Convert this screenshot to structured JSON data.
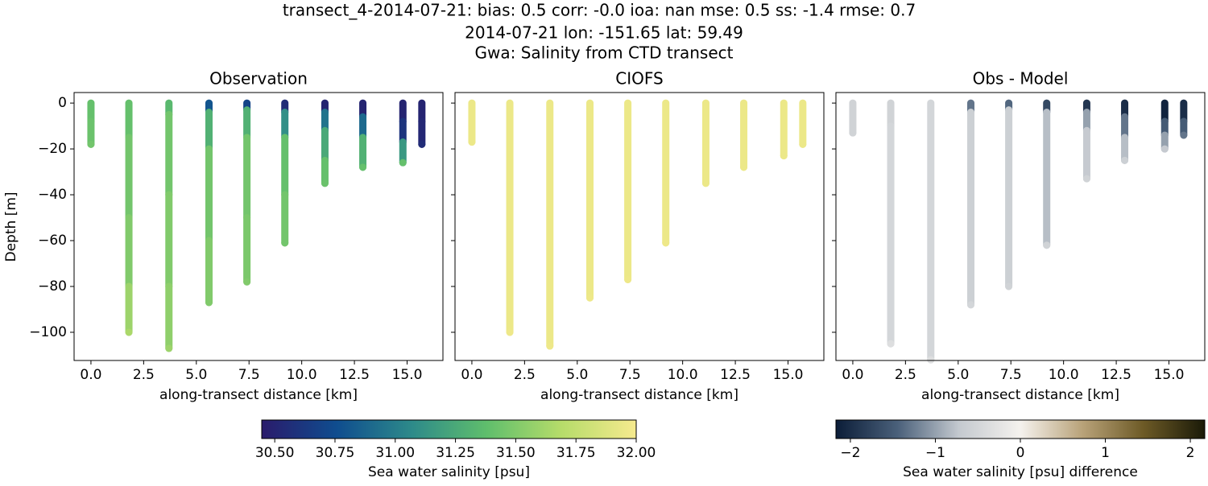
{
  "chart_data": {
    "type": "transect",
    "title": [
      "transect_4-2014-07-21: bias: 0.5  corr: -0.0  ioa: nan  mse: 0.5  ss: -1.4  rmse: 0.7",
      "2014-07-21 lon: -151.65 lat: 59.49",
      "Gwa: Salinity from CTD transect"
    ],
    "xlabel": "along-transect distance [km]",
    "ylabel": "Depth [m]",
    "xlim": [
      -0.8,
      16.7
    ],
    "ylim": [
      -112.3,
      4.6
    ],
    "xticks": [
      {
        "value": 0.0,
        "label": "0.0"
      },
      2.5,
      {
        "value": 5.0,
        "label": "5.0"
      },
      7.5,
      {
        "value": 10.0,
        "label": "10.0"
      },
      12.5,
      {
        "value": 15.0,
        "label": "15.0"
      }
    ],
    "yticks": [
      {
        "value": -100,
        "label": "−100"
      },
      {
        "value": -80,
        "label": "−80"
      },
      {
        "value": -60,
        "label": "−60"
      },
      {
        "value": -40,
        "label": "−40"
      },
      {
        "value": -20,
        "label": "−20"
      },
      0
    ],
    "colormaps": {
      "haline": [
        "#2a1b6b",
        "#0f4d8f",
        "#2d8a8a",
        "#5fbe6c",
        "#b6dc6a",
        "#f6ea8e"
      ],
      "diff": [
        "#0b1d38",
        "#4a607a",
        "#c4c9cf",
        "#f5f2ee",
        "#b9a37a",
        "#6d5a26",
        "#1a1a08"
      ]
    },
    "panels": [
      {
        "title": "Observation",
        "cmap": "haline",
        "casts": [
          {
            "x": 0.0,
            "depth": [
              0,
              -8,
              -18
            ],
            "value": [
              31.4,
              31.42,
              31.45
            ]
          },
          {
            "x": 1.8,
            "depth": [
              0,
              -15,
              -50,
              -80,
              -100
            ],
            "value": [
              31.4,
              31.45,
              31.5,
              31.6,
              31.65
            ]
          },
          {
            "x": 3.7,
            "depth": [
              0,
              -5,
              -40,
              -80,
              -107
            ],
            "value": [
              31.35,
              31.45,
              31.5,
              31.55,
              31.6
            ]
          },
          {
            "x": 5.6,
            "depth": [
              0,
              -4,
              -20,
              -60,
              -87
            ],
            "value": [
              30.8,
              31.3,
              31.45,
              31.5,
              31.5
            ]
          },
          {
            "x": 7.4,
            "depth": [
              0,
              -3,
              -15,
              -50,
              -78
            ],
            "value": [
              30.7,
              31.3,
              31.45,
              31.48,
              31.5
            ]
          },
          {
            "x": 9.2,
            "depth": [
              0,
              -4,
              -15,
              -40,
              -61
            ],
            "value": [
              30.55,
              31.1,
              31.4,
              31.45,
              31.45
            ]
          },
          {
            "x": 11.1,
            "depth": [
              0,
              -4,
              -12,
              -25,
              -35
            ],
            "value": [
              30.5,
              30.95,
              31.25,
              31.4,
              31.42
            ]
          },
          {
            "x": 12.9,
            "depth": [
              0,
              -6,
              -15,
              -28
            ],
            "value": [
              30.5,
              30.9,
              31.3,
              31.4
            ]
          },
          {
            "x": 14.8,
            "depth": [
              0,
              -8,
              -17,
              -26
            ],
            "value": [
              30.5,
              30.6,
              31.15,
              31.4
            ]
          },
          {
            "x": 15.7,
            "depth": [
              0,
              -8,
              -18
            ],
            "value": [
              30.5,
              30.52,
              30.55
            ]
          }
        ]
      },
      {
        "title": "CIOFS",
        "cmap": "haline",
        "casts": [
          {
            "x": 0.0,
            "depth": [
              0,
              -17
            ],
            "value": [
              31.95,
              31.95
            ]
          },
          {
            "x": 1.8,
            "depth": [
              0,
              -100
            ],
            "value": [
              31.95,
              31.96
            ]
          },
          {
            "x": 3.7,
            "depth": [
              0,
              -106
            ],
            "value": [
              31.95,
              31.96
            ]
          },
          {
            "x": 5.6,
            "depth": [
              0,
              -85
            ],
            "value": [
              31.95,
              31.96
            ]
          },
          {
            "x": 7.4,
            "depth": [
              0,
              -77
            ],
            "value": [
              31.95,
              31.96
            ]
          },
          {
            "x": 9.2,
            "depth": [
              0,
              -61
            ],
            "value": [
              31.95,
              31.96
            ]
          },
          {
            "x": 11.1,
            "depth": [
              0,
              -35
            ],
            "value": [
              31.95,
              31.95
            ]
          },
          {
            "x": 12.9,
            "depth": [
              0,
              -28
            ],
            "value": [
              31.95,
              31.95
            ]
          },
          {
            "x": 14.8,
            "depth": [
              0,
              -23
            ],
            "value": [
              31.95,
              31.95
            ]
          },
          {
            "x": 15.7,
            "depth": [
              0,
              -18
            ],
            "value": [
              31.95,
              31.95
            ]
          }
        ]
      },
      {
        "title": "Obs - Model",
        "cmap": "diff",
        "casts": [
          {
            "x": 0.0,
            "depth": [
              0,
              -13
            ],
            "value": [
              -0.55,
              -0.55
            ]
          },
          {
            "x": 1.8,
            "depth": [
              0,
              -10,
              -105
            ],
            "value": [
              -0.55,
              -0.5,
              -0.35
            ]
          },
          {
            "x": 3.7,
            "depth": [
              0,
              -112
            ],
            "value": [
              -0.5,
              -0.35
            ]
          },
          {
            "x": 5.6,
            "depth": [
              0,
              -4,
              -88
            ],
            "value": [
              -1.3,
              -0.6,
              -0.5
            ]
          },
          {
            "x": 7.4,
            "depth": [
              0,
              -3,
              -80
            ],
            "value": [
              -1.4,
              -0.6,
              -0.55
            ]
          },
          {
            "x": 9.2,
            "depth": [
              0,
              -4,
              -62
            ],
            "value": [
              -1.7,
              -0.8,
              -0.55
            ]
          },
          {
            "x": 11.1,
            "depth": [
              0,
              -4,
              -12,
              -33
            ],
            "value": [
              -1.9,
              -1.0,
              -0.7,
              -0.55
            ]
          },
          {
            "x": 12.9,
            "depth": [
              0,
              -6,
              -15,
              -25
            ],
            "value": [
              -2.0,
              -1.3,
              -0.8,
              -0.6
            ]
          },
          {
            "x": 14.8,
            "depth": [
              0,
              -8,
              -14,
              -20
            ],
            "value": [
              -2.1,
              -1.5,
              -1.0,
              -0.7
            ]
          },
          {
            "x": 15.7,
            "depth": [
              0,
              -8,
              -14
            ],
            "value": [
              -2.0,
              -1.5,
              -1.3
            ]
          }
        ]
      }
    ],
    "colorbars": [
      {
        "label": "Sea water salinity [psu]",
        "cmap": "haline",
        "lim": [
          30.446,
          32.0
        ],
        "ticks": [
          {
            "value": 30.5,
            "label": "30.50"
          },
          30.75,
          {
            "value": 31.0,
            "label": "31.00"
          },
          31.25,
          {
            "value": 31.5,
            "label": "31.50"
          },
          31.75,
          {
            "value": 32.0,
            "label": "32.00"
          }
        ]
      },
      {
        "label": "Sea water salinity [psu] difference",
        "cmap": "diff",
        "lim": [
          -2.17,
          2.17
        ],
        "ticks": [
          {
            "value": -2,
            "label": "−2"
          },
          {
            "value": -1,
            "label": "−1"
          },
          0,
          1,
          2
        ]
      }
    ]
  }
}
